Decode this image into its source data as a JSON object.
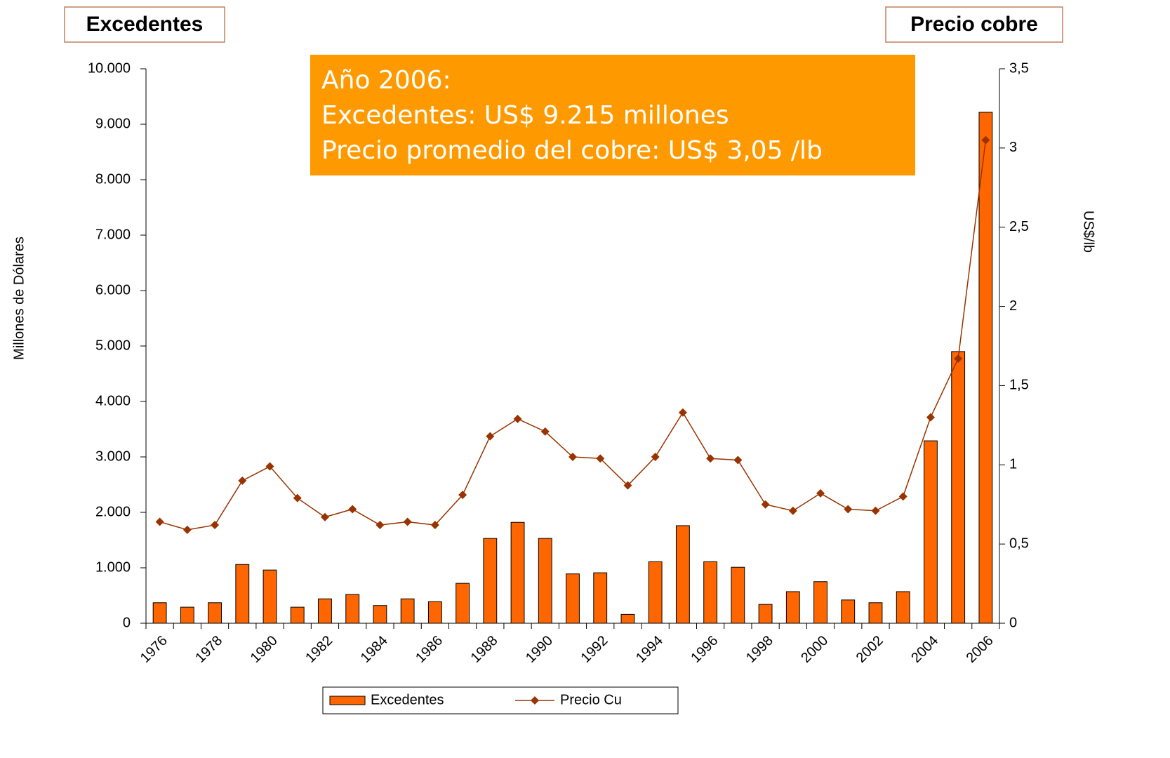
{
  "chart_data": {
    "type": "bar_line",
    "left_label": "Excedentes",
    "right_label": "Precio cobre",
    "ylabel": "Millones de Dólares",
    "y2label": "US$/lb",
    "annotation": [
      "Año 2006:",
      "Excedentes: US$ 9.215 millones",
      "Precio promedio del cobre: US$ 3,05 /lb"
    ],
    "categories": [
      "1976",
      null,
      "1978",
      null,
      "1980",
      null,
      "1982",
      null,
      "1984",
      null,
      "1986",
      null,
      "1988",
      null,
      "1990",
      null,
      "1992",
      null,
      "1994",
      null,
      "1996",
      null,
      "1998",
      null,
      "2000",
      null,
      "2002",
      null,
      "2004",
      null,
      "2006"
    ],
    "series": [
      {
        "name": "Excedentes",
        "color": "#ff6600",
        "type": "bar",
        "values": [
          370,
          290,
          370,
          1060,
          960,
          290,
          440,
          520,
          320,
          440,
          390,
          720,
          1530,
          1820,
          1530,
          890,
          910,
          160,
          1110,
          1760,
          1110,
          1010,
          340,
          570,
          750,
          420,
          370,
          570,
          3290,
          4900,
          9215
        ]
      },
      {
        "name": "Precio Cu",
        "color": "#993300",
        "type": "line",
        "axis": "y2",
        "values": [
          0.64,
          0.59,
          0.62,
          0.9,
          0.99,
          0.79,
          0.67,
          0.72,
          0.62,
          0.64,
          0.62,
          0.81,
          1.18,
          1.29,
          1.21,
          1.05,
          1.04,
          0.87,
          1.05,
          1.33,
          1.04,
          1.03,
          0.75,
          0.71,
          0.82,
          0.72,
          0.71,
          0.8,
          1.3,
          1.67,
          3.05
        ]
      }
    ],
    "ylim": [
      0,
      10000
    ],
    "yticks": [
      0,
      {
        "value": 1000,
        "label": "1.000"
      },
      {
        "value": 2000,
        "label": "2.000"
      },
      {
        "value": 3000,
        "label": "3.000"
      },
      {
        "value": 4000,
        "label": "4.000"
      },
      {
        "value": 5000,
        "label": "5.000"
      },
      {
        "value": 6000,
        "label": "6.000"
      },
      {
        "value": 7000,
        "label": "7.000"
      },
      {
        "value": 8000,
        "label": "8.000"
      },
      {
        "value": 9000,
        "label": "9.000"
      },
      {
        "value": 10000,
        "label": "10.000"
      }
    ],
    "y2lim": [
      0,
      3.5
    ],
    "y2ticks": [
      0,
      {
        "value": 0.5,
        "label": "0,5"
      },
      1,
      {
        "value": 1.5,
        "label": "1,5"
      },
      2,
      {
        "value": 2.5,
        "label": "2,5"
      },
      3,
      {
        "value": 3.5,
        "label": "3,5"
      }
    ]
  }
}
